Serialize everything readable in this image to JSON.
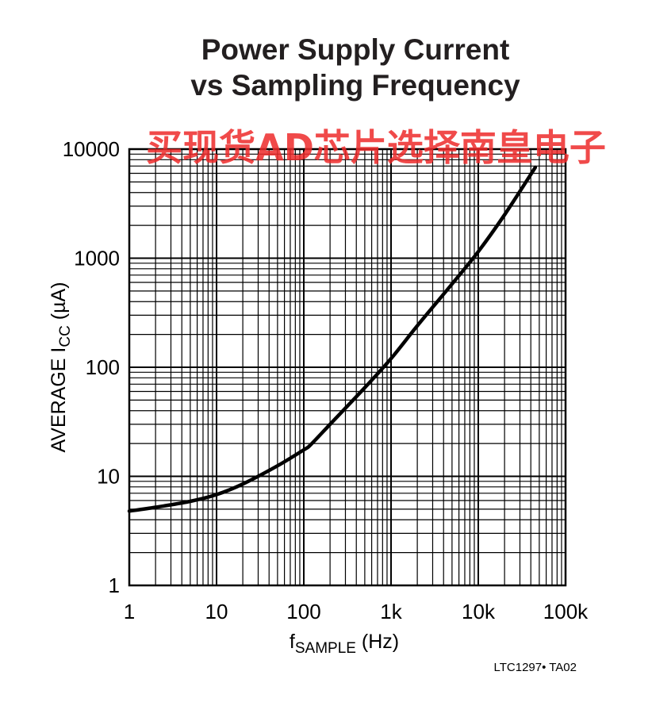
{
  "chart_data": {
    "type": "line",
    "title_line1": "Power Supply Current",
    "title_line2": "vs Sampling Frequency",
    "xlabel": {
      "main": "f",
      "sub": "SAMPLE",
      "unit": " (Hz)"
    },
    "ylabel": {
      "main": "AVERAGE I",
      "sub": "CC",
      "unit": " (µA)"
    },
    "x_scale": "log",
    "y_scale": "log",
    "xlim": [
      1,
      100000
    ],
    "ylim": [
      1,
      10000
    ],
    "grid": true,
    "x_ticks": [
      {
        "value": 1,
        "label": "1"
      },
      {
        "value": 10,
        "label": "10"
      },
      {
        "value": 100,
        "label": "100"
      },
      {
        "value": 1000,
        "label": "1k"
      },
      {
        "value": 10000,
        "label": "10k"
      },
      {
        "value": 100000,
        "label": "100k"
      }
    ],
    "y_ticks": [
      {
        "value": 1,
        "label": "1"
      },
      {
        "value": 10,
        "label": "10"
      },
      {
        "value": 100,
        "label": "100"
      },
      {
        "value": 1000,
        "label": "1000"
      },
      {
        "value": 10000,
        "label": "10000"
      }
    ],
    "series": [
      {
        "x": [
          1,
          2,
          5,
          10,
          20,
          50,
          100,
          120,
          200,
          500,
          1000,
          2000,
          5000,
          10000,
          20000,
          45000
        ],
        "y": [
          4.8,
          5.2,
          5.9,
          6.8,
          8.5,
          12.5,
          17.5,
          19.5,
          30,
          65,
          120,
          240,
          580,
          1150,
          2500,
          6800
        ]
      }
    ],
    "figure_code": "LTC1297• TA02"
  },
  "watermark": "买现货AD芯片选择南皇电子",
  "colors": {
    "line": "#000000",
    "grid": "#000000",
    "watermark": "#ee2b2b"
  }
}
